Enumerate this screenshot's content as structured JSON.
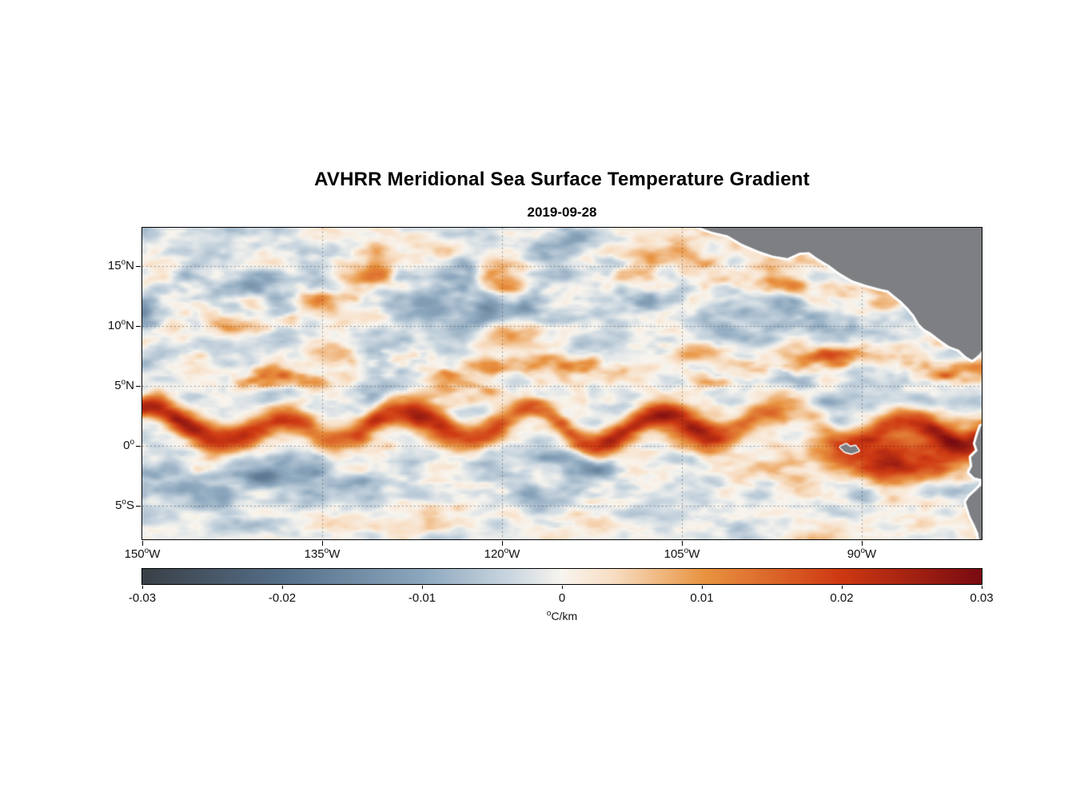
{
  "title": "AVHRR Meridional Sea Surface Temperature Gradient",
  "date": "2019-09-28",
  "axes": {
    "y_ticks": [
      {
        "v": "15",
        "d": "o",
        "s": "N"
      },
      {
        "v": "10",
        "d": "o",
        "s": "N"
      },
      {
        "v": "5",
        "d": "o",
        "s": "N"
      },
      {
        "v": "0",
        "d": "o",
        "s": ""
      },
      {
        "v": "5",
        "d": "o",
        "s": "S"
      }
    ],
    "x_ticks": [
      {
        "v": "150",
        "d": "o",
        "s": "W"
      },
      {
        "v": "135",
        "d": "o",
        "s": "W"
      },
      {
        "v": "120",
        "d": "o",
        "s": "W"
      },
      {
        "v": "105",
        "d": "o",
        "s": "W"
      },
      {
        "v": "90",
        "d": "o",
        "s": "W"
      }
    ]
  },
  "colorbar": {
    "tick_labels": [
      "-0.03",
      "-0.02",
      "-0.01",
      "0",
      "0.01",
      "0.02",
      "0.03"
    ],
    "unit": {
      "d": "o",
      "s": "C/km"
    },
    "gradient": [
      {
        "p": 0.0,
        "c": "#3a4047"
      },
      {
        "p": 0.17,
        "c": "#56708a"
      },
      {
        "p": 0.33,
        "c": "#8ba6bd"
      },
      {
        "p": 0.44,
        "c": "#ccd8e1"
      },
      {
        "p": 0.5,
        "c": "#f8f5ef"
      },
      {
        "p": 0.56,
        "c": "#f8dfc5"
      },
      {
        "p": 0.67,
        "c": "#e99441"
      },
      {
        "p": 0.83,
        "c": "#cf3a13"
      },
      {
        "p": 1.0,
        "c": "#7a0b11"
      }
    ]
  },
  "map_colors": {
    "land": "#7d7f82",
    "coast_halo": "#ffffff",
    "grid": "rgba(20,20,20,0.5)",
    "ocean_background": "#eef2f5"
  },
  "chart_data": {
    "type": "heatmap",
    "title": "AVHRR Meridional Sea Surface Temperature Gradient",
    "subtitle_date": "2019-09-28",
    "x_axis": {
      "quantity": "Longitude",
      "tick_labels": [
        "150°W",
        "135°W",
        "120°W",
        "105°W",
        "90°W"
      ],
      "tick_values_deg_west": [
        150,
        135,
        120,
        105,
        90
      ],
      "range_deg_west": [
        150,
        80
      ]
    },
    "y_axis": {
      "quantity": "Latitude",
      "tick_labels": [
        "15°N",
        "10°N",
        "5°N",
        "0°",
        "5°S"
      ],
      "tick_values_deg_north": [
        15,
        10,
        5,
        0,
        -5
      ],
      "range_deg_north": [
        -7.8,
        18.2
      ]
    },
    "value": {
      "unit": "°C/km",
      "colorbar_orientation": "horizontal",
      "colorbar_tick_values": [
        -0.03,
        -0.02,
        -0.01,
        0,
        0.01,
        0.02,
        0.03
      ],
      "clim": [
        -0.03,
        0.03
      ],
      "colormap": "diverging dark-blue / white / dark-red"
    },
    "grid": {
      "style": "dotted",
      "x_lines_deg_west": [
        135,
        120,
        105,
        90
      ],
      "y_lines_deg_north": [
        15,
        10,
        5,
        0,
        -5
      ]
    },
    "land_masses": [
      "Mexico / Central America coast filling the upper-right corner (gray with white coastal margin)",
      "Azuero / Panama peninsula hook near 80°W, 7-9°N at right edge",
      "Ecuador - Peru coastal strip along lower-right edge (80-81.3°W, 1°N-8°S)",
      "Galápagos Islands, small gray marks near 91°W, 0.5°S"
    ],
    "features": [
      "Strong positive (red, up to +0.03 °C/km) meridional SST gradient band meandering along ~1-4°N across the whole basin (tropical instability wave front)",
      "Wave-like cusps of the red front with ~10° longitude spacing, some arcs reaching ~6-7°N near 125-130°W",
      "Negative (blue) gradient band south of the equator (~1-4°S), strongest between 130°W and 100°W",
      "Patchy positive (orange) gradients along ~6-8°N and scattered between 9-15°N, strongest toward 85-105°W",
      "Dark slate-blue negative patches in the northwest quadrant (~13-16°N, 130-145°W)",
      "Intense positive gradients adjacent to the Ecuador / Peru coast (80-90°W, 0-3°S)",
      "Background ocean mostly near-zero gradient (pale blue / pale peach mottling)"
    ]
  }
}
